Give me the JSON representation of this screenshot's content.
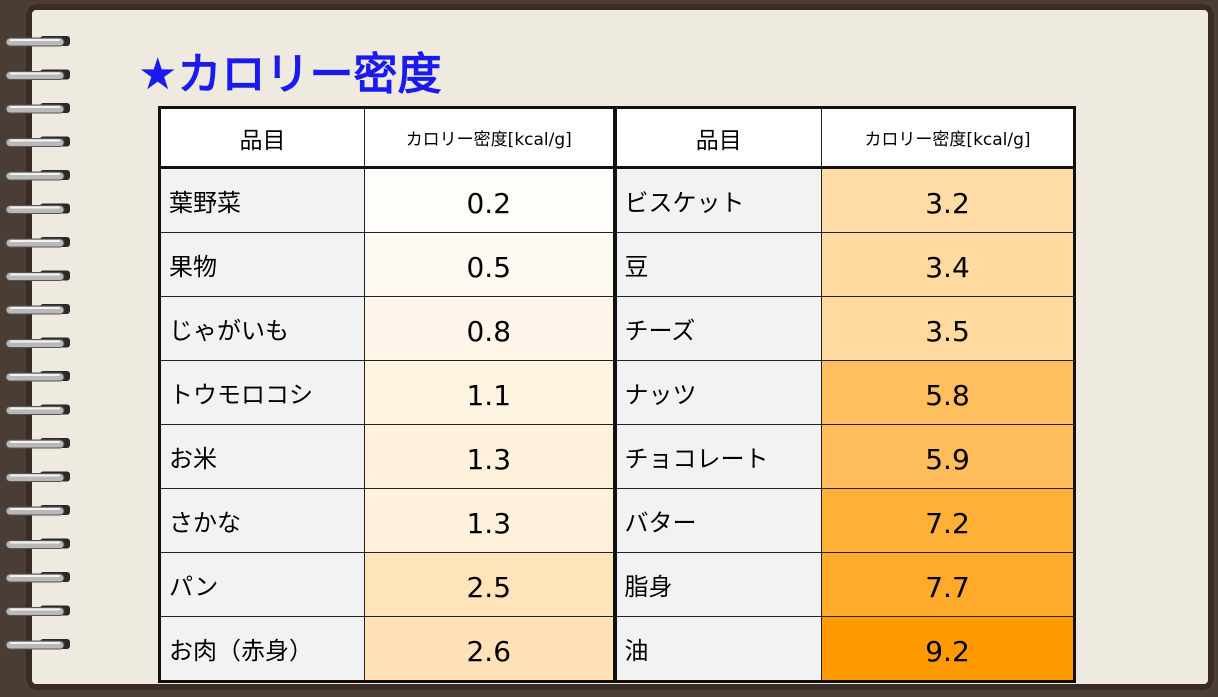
{
  "title": "★カロリー密度",
  "table": {
    "header": [
      "品目",
      "カロリー密度[kcal/g]",
      "品目",
      "カロリー密度[kcal/g]"
    ],
    "rows": [
      [
        "葉野菜",
        0.2,
        "ビスケット",
        3.2
      ],
      [
        "果物",
        0.5,
        "豆",
        3.4
      ],
      [
        "じゃがいも",
        0.8,
        "チーズ",
        3.5
      ],
      [
        "トウモロコシ",
        1.1,
        "ナッツ",
        5.8
      ],
      [
        "お米",
        1.3,
        "チョコレート",
        5.9
      ],
      [
        "さかな",
        1.3,
        "バター",
        7.2
      ],
      [
        "パン",
        2.5,
        "脂身",
        7.7
      ],
      [
        "お肉（赤身）",
        2.6,
        "油",
        9.2
      ]
    ]
  }
}
